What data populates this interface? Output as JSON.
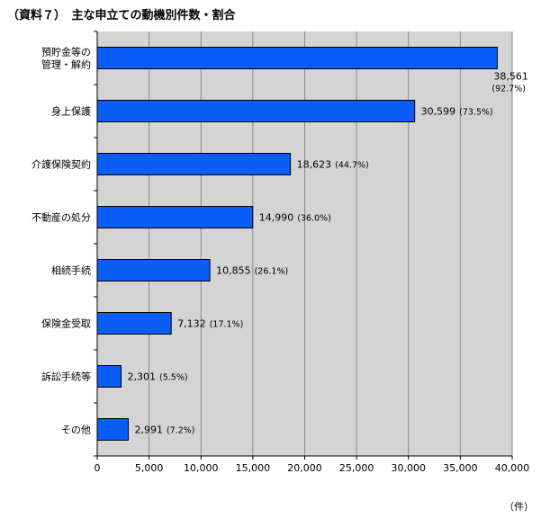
{
  "chart_data": {
    "type": "bar",
    "orientation": "horizontal",
    "title": "（資料７）　主な申立ての動機別件数・割合",
    "categories": [
      [
        "預貯金等の",
        "管理・解約"
      ],
      [
        "身上保護"
      ],
      [
        "介護保険契約"
      ],
      [
        "不動産の処分"
      ],
      [
        "相続手続"
      ],
      [
        "保険金受取"
      ],
      [
        "訴訟手続等"
      ],
      [
        "その他"
      ]
    ],
    "values": [
      38561,
      30599,
      18623,
      14990,
      10855,
      7132,
      2301,
      2991
    ],
    "value_labels": [
      "38,561",
      "30,599",
      "18,623",
      "14,990",
      "10,855",
      "7,132",
      "2,301",
      "2,991"
    ],
    "percent_labels": [
      "(92.7%)",
      "(73.5%)",
      "(44.7%)",
      "(36.0%)",
      "(26.1%)",
      "(17.1%)",
      "(5.5%)",
      "(7.2%)"
    ],
    "xlim": [
      0,
      40000
    ],
    "xticks": [
      0,
      5000,
      10000,
      15000,
      20000,
      25000,
      30000,
      35000,
      40000
    ],
    "xtick_labels": [
      "0",
      "5,000",
      "10,000",
      "15,000",
      "20,000",
      "25,000",
      "30,000",
      "35,000",
      "40,000"
    ],
    "unit": "（件）",
    "grid": true,
    "colors": {
      "bar": "#0A5EF5",
      "bar_edge": "#000000",
      "plot_bg": "#D4D4D4",
      "grid": "#8A8A8A"
    }
  }
}
